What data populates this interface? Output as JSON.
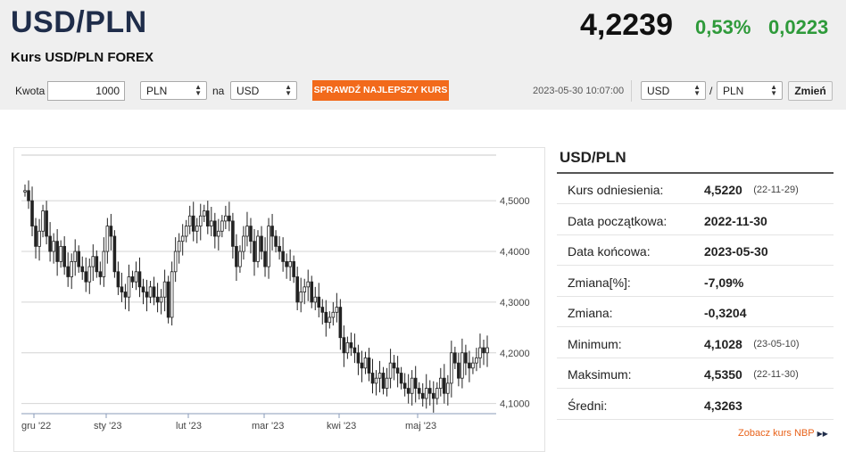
{
  "header": {
    "pair": "USD/PLN",
    "subtitle": "Kurs USD/PLN FOREX",
    "rate": "4,2239",
    "change_pct": "0,53%",
    "change_abs": "0,0223",
    "change_color": "#2e9a3a"
  },
  "converter": {
    "amount_label": "Kwota",
    "amount_value": "1000",
    "from_currency": "PLN",
    "to_label": "na",
    "to_currency": "USD",
    "check_button": "SPRAWDŹ NAJLEPSZY KURS",
    "check_button_color": "#f26a1b"
  },
  "pair_selector": {
    "timestamp": "2023-05-30 10:07:00",
    "base": "USD",
    "separator": "/",
    "quote": "PLN",
    "change_button": "Zmień"
  },
  "stats": {
    "title": "USD/PLN",
    "rows": [
      {
        "label": "Kurs odniesienia:",
        "value": "4,5220",
        "date": "(22-11-29)"
      },
      {
        "label": "Data początkowa:",
        "value": "2022-11-30",
        "date": ""
      },
      {
        "label": "Data końcowa:",
        "value": "2023-05-30",
        "date": ""
      },
      {
        "label": "Zmiana[%]:",
        "value": "-7,09%",
        "date": ""
      },
      {
        "label": "Zmiana:",
        "value": "-0,3204",
        "date": ""
      },
      {
        "label": "Minimum:",
        "value": "4,1028",
        "date": "(23-05-10)"
      },
      {
        "label": "Maksimum:",
        "value": "4,5350",
        "date": "(22-11-30)"
      },
      {
        "label": "Średni:",
        "value": "4,3263",
        "date": ""
      }
    ],
    "nbp_link": "Zobacz kurs NBP"
  },
  "chart_data": {
    "type": "candlestick",
    "x_tick_labels": [
      "gru '22",
      "sty '23",
      "lut '23",
      "mar '23",
      "kwi '23",
      "maj '23"
    ],
    "y_tick_labels": [
      "4,5000",
      "4,4000",
      "4,3000",
      "4,2000",
      "4,1000"
    ],
    "y_ticks": [
      4.5,
      4.4,
      4.3,
      4.2,
      4.1
    ],
    "ylim": [
      4.08,
      4.59
    ],
    "grid": true,
    "candle_color": "#222222",
    "series": [
      {
        "values": [
          4.52,
          4.5,
          4.45,
          4.41,
          4.44,
          4.48,
          4.43,
          4.4,
          4.42,
          4.38,
          4.41,
          4.37,
          4.35,
          4.38,
          4.4,
          4.37,
          4.36,
          4.34,
          4.37,
          4.39,
          4.36,
          4.35,
          4.4,
          4.45,
          4.43,
          4.36,
          4.33,
          4.32,
          4.31,
          4.35,
          4.34,
          4.36,
          4.33,
          4.32,
          4.31,
          4.33,
          4.31,
          4.3,
          4.31,
          4.34,
          4.27,
          4.36,
          4.4,
          4.42,
          4.43,
          4.45,
          4.47,
          4.44,
          4.45,
          4.47,
          4.48,
          4.45,
          4.46,
          4.43,
          4.44,
          4.46,
          4.47,
          4.46,
          4.41,
          4.37,
          4.4,
          4.43,
          4.45,
          4.42,
          4.38,
          4.43,
          4.4,
          4.37,
          4.45,
          4.43,
          4.41,
          4.4,
          4.38,
          4.37,
          4.38,
          4.35,
          4.3,
          4.32,
          4.33,
          4.34,
          4.3,
          4.31,
          4.29,
          4.28,
          4.26,
          4.27,
          4.28,
          4.29,
          4.23,
          4.2,
          4.22,
          4.21,
          4.2,
          4.18,
          4.17,
          4.19,
          4.16,
          4.14,
          4.15,
          4.16,
          4.13,
          4.15,
          4.18,
          4.17,
          4.16,
          4.14,
          4.13,
          4.12,
          4.15,
          4.13,
          4.12,
          4.11,
          4.13,
          4.12,
          4.11,
          4.13,
          4.15,
          4.12,
          4.14,
          4.2,
          4.18,
          4.15,
          4.2,
          4.18,
          4.17,
          4.18,
          4.19,
          4.21,
          4.2,
          4.21
        ]
      }
    ]
  }
}
